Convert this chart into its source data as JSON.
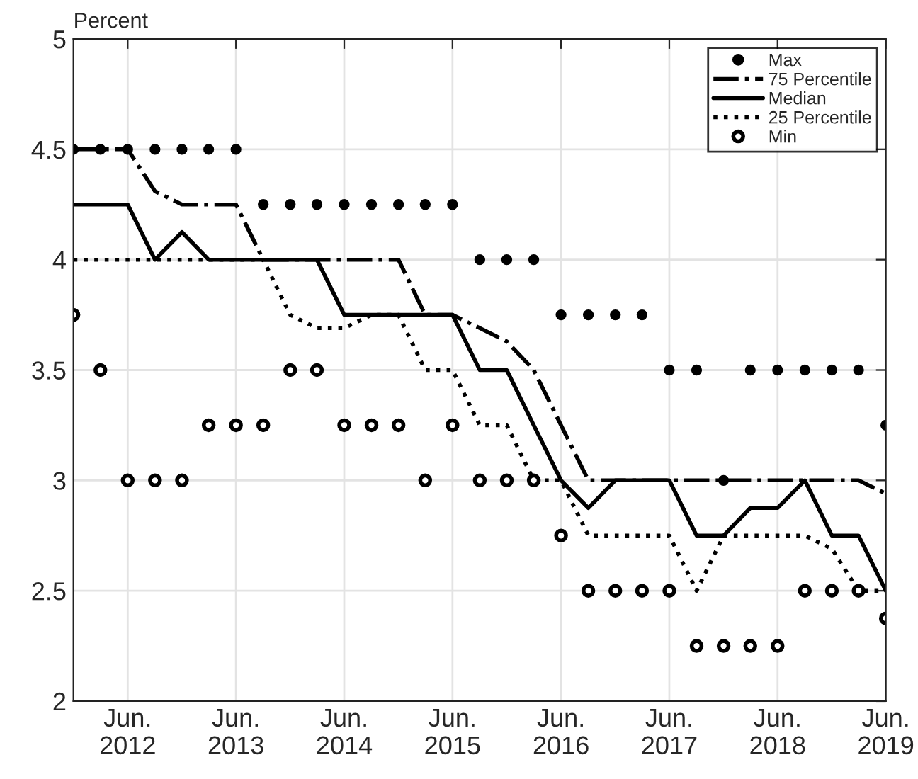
{
  "chart_data": {
    "type": "line",
    "ylabel": "Percent",
    "x": [
      "2011-12",
      "2012-03",
      "2012-06",
      "2012-09",
      "2012-12",
      "2013-03",
      "2013-06",
      "2013-09",
      "2013-12",
      "2014-03",
      "2014-06",
      "2014-09",
      "2014-12",
      "2015-03",
      "2015-06",
      "2015-09",
      "2015-12",
      "2016-03",
      "2016-06",
      "2016-09",
      "2016-12",
      "2017-03",
      "2017-06",
      "2017-09",
      "2017-12",
      "2018-03",
      "2018-06",
      "2018-09",
      "2018-12",
      "2019-03",
      "2019-06"
    ],
    "xlim": [
      "2011-12",
      "2019-06"
    ],
    "xticks": [
      {
        "value": "2012-06",
        "label": "Jun.\n2012"
      },
      {
        "value": "2013-06",
        "label": "Jun.\n2013"
      },
      {
        "value": "2014-06",
        "label": "Jun.\n2014"
      },
      {
        "value": "2015-06",
        "label": "Jun.\n2015"
      },
      {
        "value": "2016-06",
        "label": "Jun.\n2016"
      },
      {
        "value": "2017-06",
        "label": "Jun.\n2017"
      },
      {
        "value": "2018-06",
        "label": "Jun.\n2018"
      },
      {
        "value": "2019-06",
        "label": "Jun.\n2019"
      }
    ],
    "ylim": [
      2,
      5
    ],
    "yticks": [
      2,
      2.5,
      3,
      3.5,
      4,
      4.5,
      5
    ],
    "grid": true,
    "legend": "top right",
    "series": [
      {
        "name": "Max",
        "type": "scatter",
        "marker": "circle",
        "color": "#000000",
        "values": [
          4.5,
          4.5,
          4.5,
          4.5,
          4.5,
          4.5,
          4.5,
          4.25,
          4.25,
          4.25,
          4.25,
          4.25,
          4.25,
          4.25,
          4.25,
          4,
          4,
          4,
          3.75,
          3.75,
          3.75,
          3.75,
          3.5,
          3.5,
          3,
          3.5,
          3.5,
          3.5,
          3.5,
          3.5,
          3.25
        ]
      },
      {
        "name": "75 Percentile",
        "line_style": "dashdot",
        "color": "#000000",
        "values": [
          4.5,
          4.5,
          4.5,
          4.31,
          4.25,
          4.25,
          4.25,
          4,
          4,
          4,
          4,
          4,
          4,
          3.75,
          3.75,
          3.69,
          3.63,
          3.5,
          3.25,
          3,
          3,
          3,
          3,
          3,
          3,
          3,
          3,
          3,
          3,
          3,
          2.94
        ]
      },
      {
        "name": "Median",
        "line_style": "solid",
        "color": "#000000",
        "values": [
          4.25,
          4.25,
          4.25,
          4,
          4.125,
          4,
          4,
          4,
          4,
          4,
          3.75,
          3.75,
          3.75,
          3.75,
          3.75,
          3.5,
          3.5,
          3.25,
          3,
          2.875,
          3,
          3,
          3,
          2.75,
          2.75,
          2.875,
          2.875,
          3,
          2.75,
          2.75,
          2.5
        ]
      },
      {
        "name": "25 Percentile",
        "line_style": "dotted",
        "color": "#000000",
        "values": [
          4,
          4,
          4,
          4,
          4,
          4,
          4,
          4,
          3.75,
          3.69,
          3.69,
          3.75,
          3.75,
          3.5,
          3.5,
          3.25,
          3.25,
          3,
          3,
          2.75,
          2.75,
          2.75,
          2.75,
          2.5,
          2.75,
          2.75,
          2.75,
          2.75,
          2.69,
          2.5,
          2.5
        ]
      },
      {
        "name": "Min",
        "type": "scatter",
        "marker": "open circle",
        "color": "#000000",
        "values": [
          3.75,
          3.5,
          3,
          3,
          3,
          3.25,
          3.25,
          3.25,
          3.5,
          3.5,
          3.25,
          3.25,
          3.25,
          3,
          3.25,
          3,
          3,
          3,
          2.75,
          2.5,
          2.5,
          2.5,
          2.5,
          2.25,
          2.25,
          2.25,
          2.25,
          2.5,
          2.5,
          2.5,
          2.375
        ]
      }
    ]
  }
}
